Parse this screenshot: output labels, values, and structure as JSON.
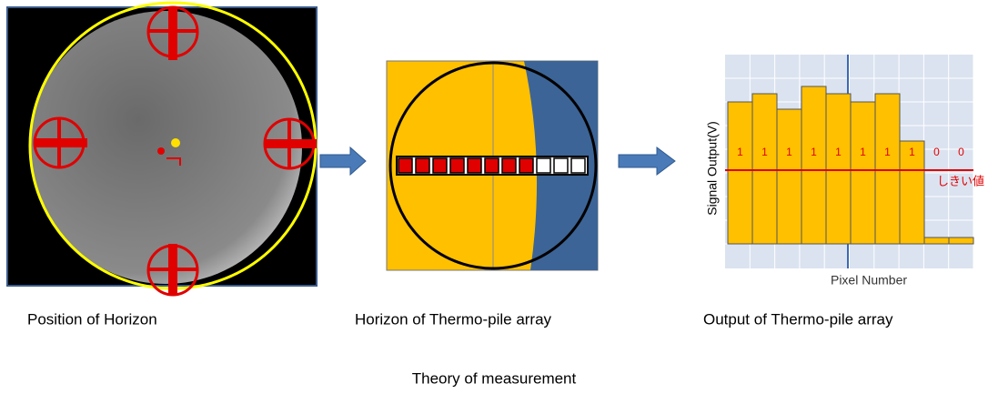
{
  "title": "Theory of measurement",
  "panels": [
    {
      "caption": "Position of Horizon"
    },
    {
      "caption": "Horizon of Thermo-pile array"
    },
    {
      "caption": "Output of Thermo-pile array",
      "y_label": "Signal Output(V)",
      "x_label": "Pixel Number",
      "threshold_label": "しきい値",
      "bits": [
        "1",
        "1",
        "1",
        "1",
        "1",
        "1",
        "1",
        "1",
        "0",
        "0"
      ]
    }
  ]
}
